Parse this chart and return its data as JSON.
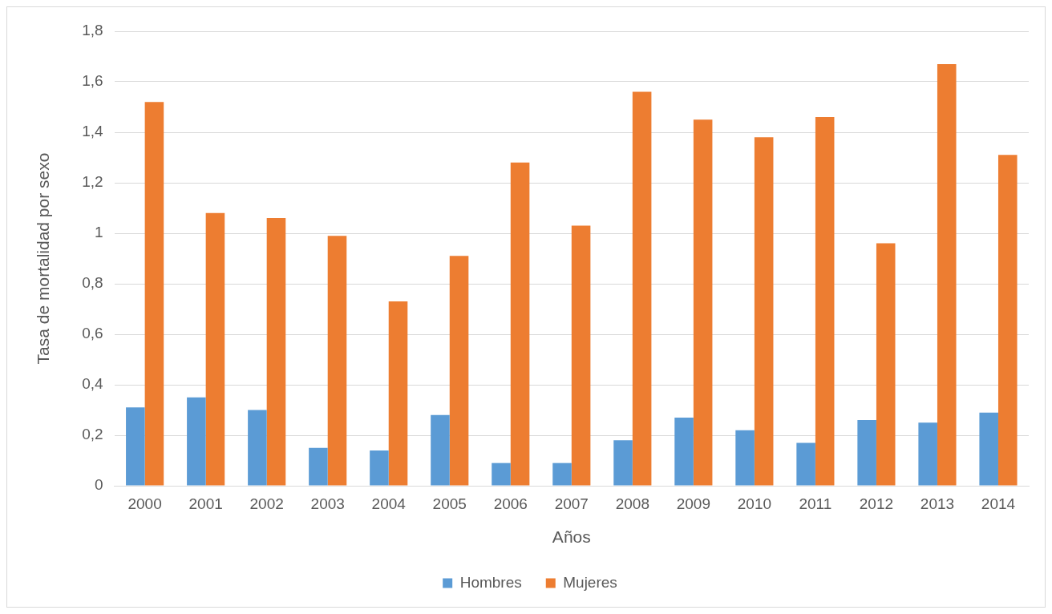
{
  "chart_data": {
    "type": "bar",
    "xlabel": "Años",
    "ylabel": "Tasa de mortalidad por sexo",
    "categories": [
      "2000",
      "2001",
      "2002",
      "2003",
      "2004",
      "2005",
      "2006",
      "2007",
      "2008",
      "2009",
      "2010",
      "2011",
      "2012",
      "2013",
      "2014"
    ],
    "series": [
      {
        "name": "Hombres",
        "color": "#5b9bd5",
        "values": [
          0.31,
          0.35,
          0.3,
          0.15,
          0.14,
          0.28,
          0.09,
          0.09,
          0.18,
          0.27,
          0.22,
          0.17,
          0.26,
          0.25,
          0.29
        ]
      },
      {
        "name": "Mujeres",
        "color": "#ed7d31",
        "values": [
          1.52,
          1.08,
          1.06,
          0.99,
          0.73,
          0.91,
          1.28,
          1.03,
          1.56,
          1.45,
          1.38,
          1.46,
          0.96,
          1.67,
          1.31
        ]
      }
    ],
    "ylim": [
      0,
      1.8
    ],
    "yticks": [
      0,
      {
        "value": 0.2,
        "label": "0,2"
      },
      {
        "value": 0.4,
        "label": "0,4"
      },
      {
        "value": 0.6,
        "label": "0,6"
      },
      {
        "value": 0.8,
        "label": "0,8"
      },
      1,
      {
        "value": 1.2,
        "label": "1,2"
      },
      {
        "value": 1.4,
        "label": "1,4"
      },
      {
        "value": 1.6,
        "label": "1,6"
      },
      {
        "value": 1.8,
        "label": "1,8"
      }
    ],
    "grid": "y",
    "legend": "bottom"
  }
}
